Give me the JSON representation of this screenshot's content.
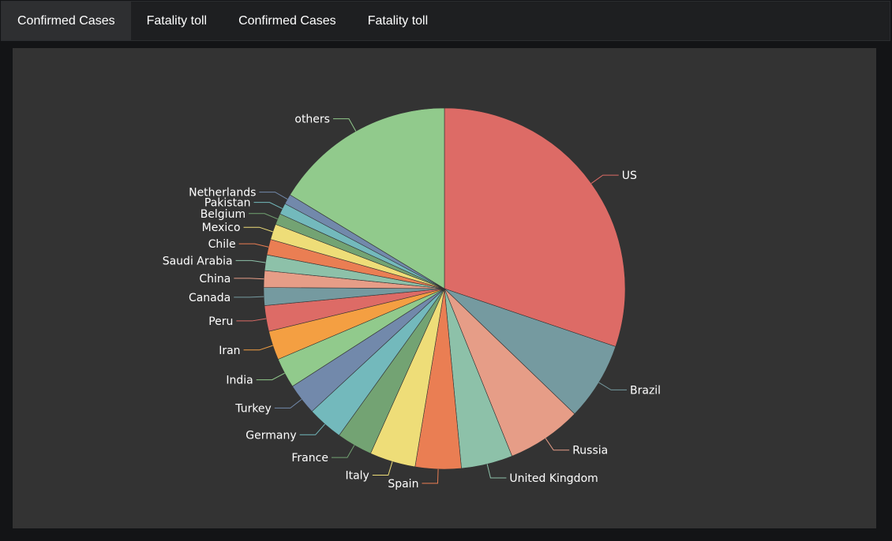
{
  "tabs": [
    {
      "label": "Confirmed Cases",
      "active": true
    },
    {
      "label": "Fatality toll",
      "active": false
    },
    {
      "label": "Confirmed Cases",
      "active": false
    },
    {
      "label": "Fatality toll",
      "active": false
    }
  ],
  "chart_data": {
    "type": "pie",
    "title": "",
    "slices": [
      {
        "label": "US",
        "value": 30.2,
        "color": "#dd6b66"
      },
      {
        "label": "Brazil",
        "value": 7.0,
        "color": "#759aa0"
      },
      {
        "label": "Russia",
        "value": 6.7,
        "color": "#e69d87"
      },
      {
        "label": "United Kingdom",
        "value": 4.6,
        "color": "#8dc1a9"
      },
      {
        "label": "Spain",
        "value": 4.1,
        "color": "#ea7e53"
      },
      {
        "label": "Italy",
        "value": 4.1,
        "color": "#eedd78"
      },
      {
        "label": "France",
        "value": 3.2,
        "color": "#73a373"
      },
      {
        "label": "Germany",
        "value": 3.2,
        "color": "#73b9bc"
      },
      {
        "label": "Turkey",
        "value": 2.8,
        "color": "#7289ab"
      },
      {
        "label": "India",
        "value": 2.7,
        "color": "#91ca8c"
      },
      {
        "label": "Iran",
        "value": 2.6,
        "color": "#f49f42"
      },
      {
        "label": "Peru",
        "value": 2.3,
        "color": "#dd6b66"
      },
      {
        "label": "Canada",
        "value": 1.6,
        "color": "#759aa0"
      },
      {
        "label": "China",
        "value": 1.5,
        "color": "#e69d87"
      },
      {
        "label": "Saudi Arabia",
        "value": 1.4,
        "color": "#8dc1a9"
      },
      {
        "label": "Chile",
        "value": 1.4,
        "color": "#ea7e53"
      },
      {
        "label": "Mexico",
        "value": 1.4,
        "color": "#eedd78"
      },
      {
        "label": "Belgium",
        "value": 1.0,
        "color": "#73a373"
      },
      {
        "label": "Pakistan",
        "value": 1.0,
        "color": "#73b9bc"
      },
      {
        "label": "Netherlands",
        "value": 0.9,
        "color": "#7289ab"
      },
      {
        "label": "others",
        "value": 16.3,
        "color": "#91ca8c"
      }
    ],
    "legend": "none"
  }
}
